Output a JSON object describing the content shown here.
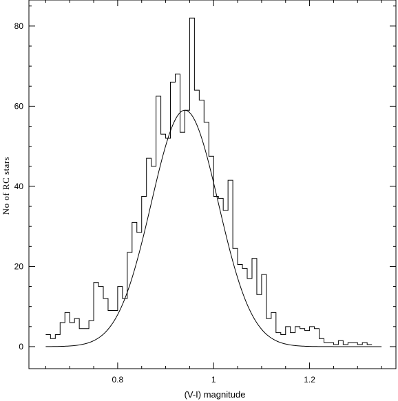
{
  "chart_data": {
    "type": "histogram",
    "xlabel": "(V-I) magnitude",
    "ylabel": "No of RC stars",
    "xlim": [
      0.615,
      1.38
    ],
    "ylim": [
      -5.5,
      86.5
    ],
    "xticks": [
      0.8,
      1.0,
      1.2
    ],
    "xtick_labels": [
      "0.8",
      "1",
      "1.2"
    ],
    "yticks": [
      0,
      20,
      40,
      60,
      80
    ],
    "ytick_labels": [
      "0",
      "20",
      "40",
      "60",
      "80"
    ],
    "bin_width": 0.01,
    "series": [
      {
        "kind": "histogram",
        "bin_left": [
          0.65,
          0.66,
          0.67,
          0.68,
          0.69,
          0.7,
          0.71,
          0.72,
          0.73,
          0.74,
          0.75,
          0.76,
          0.77,
          0.78,
          0.79,
          0.8,
          0.81,
          0.82,
          0.83,
          0.84,
          0.85,
          0.86,
          0.87,
          0.88,
          0.89,
          0.9,
          0.91,
          0.92,
          0.93,
          0.94,
          0.95,
          0.96,
          0.97,
          0.98,
          0.99,
          1.0,
          1.01,
          1.02,
          1.03,
          1.04,
          1.05,
          1.06,
          1.07,
          1.08,
          1.09,
          1.1,
          1.11,
          1.12,
          1.13,
          1.14,
          1.15,
          1.16,
          1.17,
          1.18,
          1.19,
          1.2,
          1.21,
          1.22,
          1.23,
          1.24,
          1.25,
          1.26,
          1.27,
          1.28,
          1.29,
          1.3,
          1.31,
          1.32
        ],
        "values": [
          3,
          2,
          3,
          6,
          8.5,
          6,
          7,
          4.5,
          4.5,
          6.5,
          16,
          15,
          12,
          9,
          9,
          15,
          12,
          23.5,
          31,
          28.5,
          37.5,
          47,
          45,
          62.5,
          53,
          52,
          66,
          68,
          53.5,
          59,
          82,
          64,
          61.5,
          56,
          47.5,
          37.5,
          37,
          34,
          41.5,
          24.5,
          20.5,
          19.5,
          17,
          22,
          13,
          18,
          7,
          8.5,
          3.5,
          3,
          5,
          3.5,
          5,
          4.5,
          4,
          5,
          4.5,
          2,
          1,
          1,
          0.5,
          1.5,
          0.5,
          1,
          1,
          0.5,
          1,
          0.5
        ]
      },
      {
        "kind": "gaussian_fit",
        "amplitude": 59,
        "mean": 0.94,
        "sigma": 0.07,
        "x_range": [
          0.65,
          1.35
        ]
      }
    ]
  }
}
